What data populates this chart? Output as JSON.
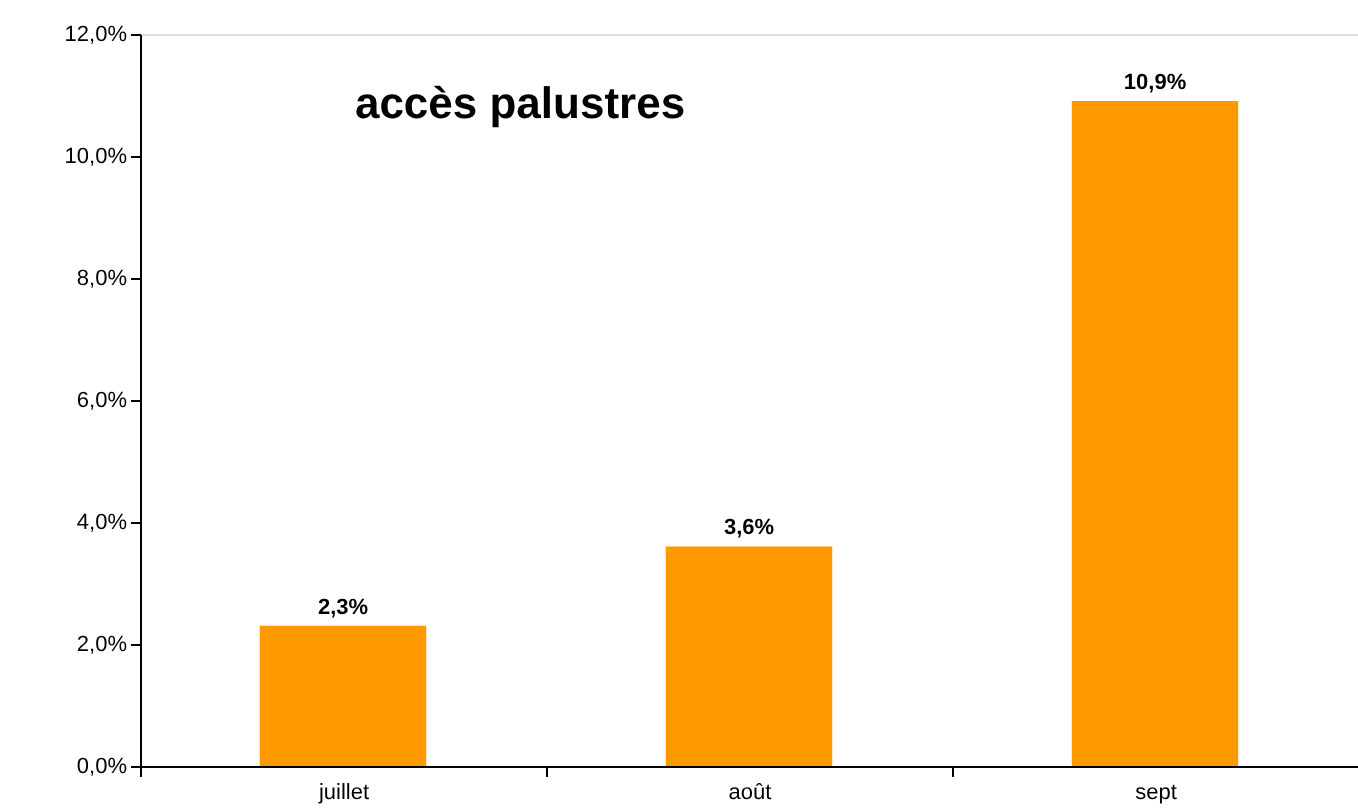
{
  "chart_data": {
    "type": "bar",
    "title": "accès palustres",
    "categories": [
      "juillet",
      "août",
      "sept"
    ],
    "values": [
      2.3,
      3.6,
      10.9
    ],
    "color": "#ff9900",
    "value_labels": [
      "2,3%",
      "3,6%",
      "10,9%"
    ],
    "ylim": [
      0,
      12
    ],
    "yticks": [
      {
        "value": 0,
        "label": "0,0%"
      },
      {
        "value": 2,
        "label": "2,0%"
      },
      {
        "value": 4,
        "label": "4,0%"
      },
      {
        "value": 6,
        "label": "6,0%"
      },
      {
        "value": 8,
        "label": "8,0%"
      },
      {
        "value": 10,
        "label": "10,0%"
      },
      {
        "value": 12,
        "label": "12,0%"
      }
    ],
    "grid": false
  }
}
